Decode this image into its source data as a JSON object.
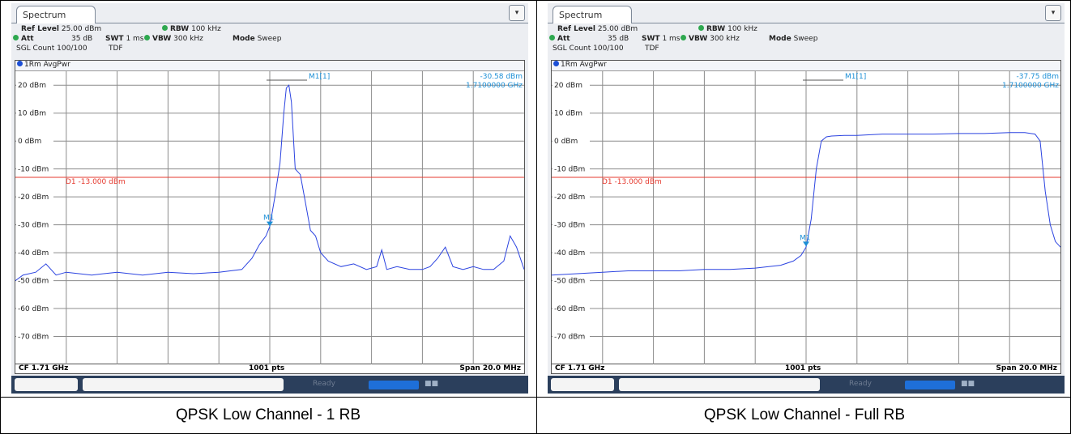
{
  "panels": [
    {
      "tab_title": "Spectrum",
      "ref_level_label": "Ref Level",
      "ref_level_value": "25.00 dBm",
      "att_label": "Att",
      "att_value": "35 dB",
      "swt_label": "SWT",
      "swt_value": "1 ms",
      "rbw_label": "RBW",
      "rbw_value": "100 kHz",
      "vbw_label": "VBW",
      "vbw_value": "300 kHz",
      "mode_label": "Mode",
      "mode_value": "Sweep",
      "sgl_count": "SGL Count 100/100",
      "tdf": "TDF",
      "trace_label": "1Rm AvgPwr",
      "marker_name": "M1[1]",
      "marker_level": "-30.58 dBm",
      "marker_freq": "1.7100000 GHz",
      "marker_tag": "M1",
      "display_line_label": "D1  -13.000 dBm",
      "cf": "CF 1.71 GHz",
      "pts": "1001 pts",
      "span": "Span 20.0 MHz",
      "status_ready": "Ready",
      "caption": "QPSK Low Channel - 1 RB"
    },
    {
      "tab_title": "Spectrum",
      "ref_level_label": "Ref Level",
      "ref_level_value": "25.00 dBm",
      "att_label": "Att",
      "att_value": "35 dB",
      "swt_label": "SWT",
      "swt_value": "1 ms",
      "rbw_label": "RBW",
      "rbw_value": "100 kHz",
      "vbw_label": "VBW",
      "vbw_value": "300 kHz",
      "mode_label": "Mode",
      "mode_value": "Sweep",
      "sgl_count": "SGL Count 100/100",
      "tdf": "TDF",
      "trace_label": "1Rm AvgPwr",
      "marker_name": "M1[1]",
      "marker_level": "-37.75 dBm",
      "marker_freq": "1.7100000 GHz",
      "marker_tag": "M1",
      "display_line_label": "D1  -13.000 dBm",
      "cf": "CF 1.71 GHz",
      "pts": "1001 pts",
      "span": "Span 20.0 MHz",
      "status_ready": "Ready",
      "caption": "QPSK Low Channel - Full RB"
    }
  ],
  "chart_data": [
    {
      "type": "line",
      "title": "QPSK Low Channel - 1 RB",
      "x_unit": "MHz",
      "xlim": [
        1700,
        1720
      ],
      "ylim": [
        -80,
        25
      ],
      "yticks": [
        20,
        10,
        0,
        -10,
        -20,
        -30,
        -40,
        -50,
        -60,
        -70
      ],
      "ytick_labels": [
        "20 dBm",
        "10 dBm",
        "0 dBm",
        "-10 dBm",
        "-20 dBm",
        "-30 dBm",
        "-40 dBm",
        "-50 dBm",
        "-60 dBm",
        "-70 dBm"
      ],
      "grid": true,
      "display_line": -13,
      "marker": {
        "x": 1710,
        "y": -30.58
      },
      "series": [
        {
          "color": "#2b43e0",
          "x": [
            1700,
            1700.3,
            1700.8,
            1701.2,
            1701.6,
            1702,
            1703,
            1704,
            1705,
            1706,
            1707,
            1708,
            1708.9,
            1709.3,
            1709.6,
            1709.85,
            1710,
            1710.2,
            1710.4,
            1710.55,
            1710.65,
            1710.75,
            1710.85,
            1711,
            1711.2,
            1711.4,
            1711.6,
            1711.8,
            1712,
            1712.3,
            1712.8,
            1713.3,
            1713.8,
            1714.2,
            1714.4,
            1714.6,
            1715,
            1715.5,
            1716,
            1716.3,
            1716.6,
            1716.9,
            1717.2,
            1717.6,
            1718,
            1718.4,
            1718.8,
            1719.2,
            1719.45,
            1719.7,
            1720
          ],
          "y": [
            -50,
            -48,
            -47,
            -44,
            -48,
            -47,
            -48,
            -47,
            -48,
            -47,
            -47.5,
            -47,
            -46,
            -42,
            -37,
            -34,
            -30.6,
            -20,
            -8,
            10,
            19,
            20,
            14,
            -10,
            -12,
            -22,
            -32,
            -34,
            -40,
            -43,
            -45,
            -44,
            -46,
            -45,
            -39,
            -46,
            -45,
            -46,
            -46,
            -45,
            -42,
            -38,
            -45,
            -46,
            -45,
            -46,
            -46,
            -43,
            -34,
            -38,
            -46
          ]
        }
      ]
    },
    {
      "type": "line",
      "title": "QPSK Low Channel - Full RB",
      "x_unit": "MHz",
      "xlim": [
        1700,
        1720
      ],
      "ylim": [
        -80,
        25
      ],
      "yticks": [
        20,
        10,
        0,
        -10,
        -20,
        -30,
        -40,
        -50,
        -60,
        -70
      ],
      "ytick_labels": [
        "20 dBm",
        "10 dBm",
        "0 dBm",
        "-10 dBm",
        "-20 dBm",
        "-30 dBm",
        "-40 dBm",
        "-50 dBm",
        "-60 dBm",
        "-70 dBm"
      ],
      "grid": true,
      "display_line": -13,
      "marker": {
        "x": 1710,
        "y": -37.75
      },
      "series": [
        {
          "color": "#2b43e0",
          "x": [
            1700,
            1701,
            1702,
            1703,
            1704,
            1705,
            1706,
            1707,
            1708,
            1709,
            1709.5,
            1709.8,
            1710,
            1710.2,
            1710.4,
            1710.6,
            1710.8,
            1711,
            1711.5,
            1712,
            1713,
            1714,
            1715,
            1716,
            1717,
            1718,
            1718.6,
            1719,
            1719.2,
            1719.4,
            1719.6,
            1719.8,
            1720
          ],
          "y": [
            -48,
            -47.5,
            -47,
            -46.5,
            -46.5,
            -46.5,
            -46,
            -46,
            -45.5,
            -44.5,
            -43,
            -41,
            -38,
            -28,
            -10,
            0,
            1.5,
            1.8,
            2,
            2,
            2.5,
            2.5,
            2.5,
            2.7,
            2.7,
            3,
            3,
            2.5,
            0,
            -18,
            -30,
            -36,
            -38
          ]
        }
      ]
    }
  ]
}
